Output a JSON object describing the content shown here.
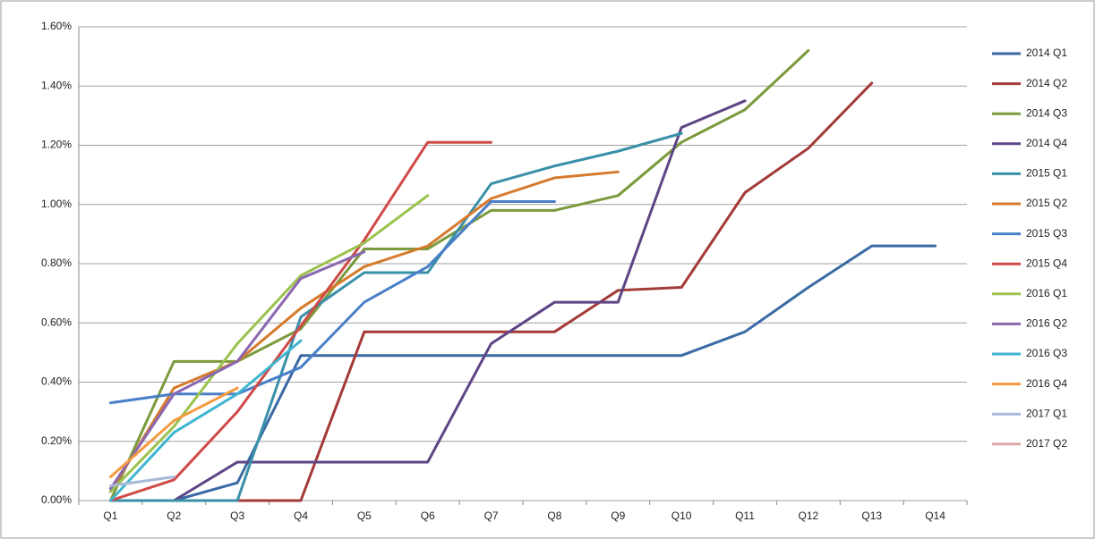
{
  "chart_data": {
    "type": "line",
    "categories": [
      "Q1",
      "Q2",
      "Q3",
      "Q4",
      "Q5",
      "Q6",
      "Q7",
      "Q8",
      "Q9",
      "Q10",
      "Q11",
      "Q12",
      "Q13",
      "Q14"
    ],
    "ylim": [
      0,
      1.6
    ],
    "yticks": [
      {
        "value": 0,
        "label": "0.00%"
      },
      {
        "value": 0.2,
        "label": "0.20%"
      },
      {
        "value": 0.4,
        "label": "0.40%"
      },
      {
        "value": 0.6,
        "label": "0.60%"
      },
      {
        "value": 0.8,
        "label": "0.80%"
      },
      {
        "value": 1.0,
        "label": "1.00%"
      },
      {
        "value": 1.2,
        "label": "1.20%"
      },
      {
        "value": 1.4,
        "label": "1.40%"
      },
      {
        "value": 1.6,
        "label": "1.60%"
      }
    ],
    "grid": true,
    "legend": "right",
    "series": [
      {
        "name": "2014 Q1",
        "color": "#3a6aa4",
        "values": [
          0,
          0,
          0.06,
          0.49,
          0.49,
          0.49,
          0.49,
          0.49,
          0.49,
          0.49,
          0.57,
          0.72,
          0.86,
          0.86
        ]
      },
      {
        "name": "2014 Q2",
        "color": "#a33a37",
        "values": [
          0,
          0,
          0,
          0,
          0.57,
          0.57,
          0.57,
          0.57,
          0.71,
          0.72,
          1.04,
          1.19,
          1.41,
          null
        ]
      },
      {
        "name": "2014 Q3",
        "color": "#7a9a3c",
        "values": [
          0,
          0.47,
          0.47,
          0.58,
          0.85,
          0.85,
          0.98,
          0.98,
          1.03,
          1.21,
          1.32,
          1.52,
          null,
          null
        ]
      },
      {
        "name": "2014 Q4",
        "color": "#5e4585",
        "values": [
          0,
          0,
          0.13,
          0.13,
          0.13,
          0.13,
          0.53,
          0.67,
          0.67,
          1.26,
          1.35,
          null,
          null,
          null
        ]
      },
      {
        "name": "2015 Q1",
        "color": "#3990a8",
        "values": [
          0,
          0,
          0,
          0.62,
          0.77,
          0.77,
          1.07,
          1.13,
          1.18,
          1.24,
          null,
          null,
          null,
          null
        ]
      },
      {
        "name": "2015 Q2",
        "color": "#d67a2c",
        "values": [
          0.03,
          0.38,
          0.47,
          0.65,
          0.79,
          0.86,
          1.02,
          1.09,
          1.11,
          null,
          null,
          null,
          null,
          null
        ]
      },
      {
        "name": "2015 Q3",
        "color": "#4a7fc8",
        "values": [
          0.33,
          0.36,
          0.36,
          0.45,
          0.67,
          0.79,
          1.01,
          1.01,
          null,
          null,
          null,
          null,
          null,
          null
        ]
      },
      {
        "name": "2015 Q4",
        "color": "#d04a48",
        "values": [
          0,
          0.07,
          0.3,
          0.59,
          0.88,
          1.21,
          1.21,
          null,
          null,
          null,
          null,
          null,
          null,
          null
        ]
      },
      {
        "name": "2016 Q1",
        "color": "#9bc24e",
        "values": [
          0.03,
          0.25,
          0.53,
          0.76,
          0.87,
          1.03,
          null,
          null,
          null,
          null,
          null,
          null,
          null,
          null
        ]
      },
      {
        "name": "2016 Q2",
        "color": "#8a68b0",
        "values": [
          0.04,
          0.36,
          0.47,
          0.75,
          0.84,
          null,
          null,
          null,
          null,
          null,
          null,
          null,
          null,
          null
        ]
      },
      {
        "name": "2016 Q3",
        "color": "#3fb5d0",
        "values": [
          0,
          0.23,
          0.36,
          0.54,
          null,
          null,
          null,
          null,
          null,
          null,
          null,
          null,
          null,
          null
        ]
      },
      {
        "name": "2016 Q4",
        "color": "#f59a40",
        "values": [
          0.08,
          0.27,
          0.38,
          null,
          null,
          null,
          null,
          null,
          null,
          null,
          null,
          null,
          null,
          null
        ]
      },
      {
        "name": "2017 Q1",
        "color": "#a9b9d9",
        "values": [
          0.05,
          0.08,
          null,
          null,
          null,
          null,
          null,
          null,
          null,
          null,
          null,
          null,
          null,
          null
        ]
      },
      {
        "name": "2017 Q2",
        "color": "#dba9a8",
        "values": [
          0.04,
          null,
          null,
          null,
          null,
          null,
          null,
          null,
          null,
          null,
          null,
          null,
          null,
          null
        ]
      }
    ]
  }
}
